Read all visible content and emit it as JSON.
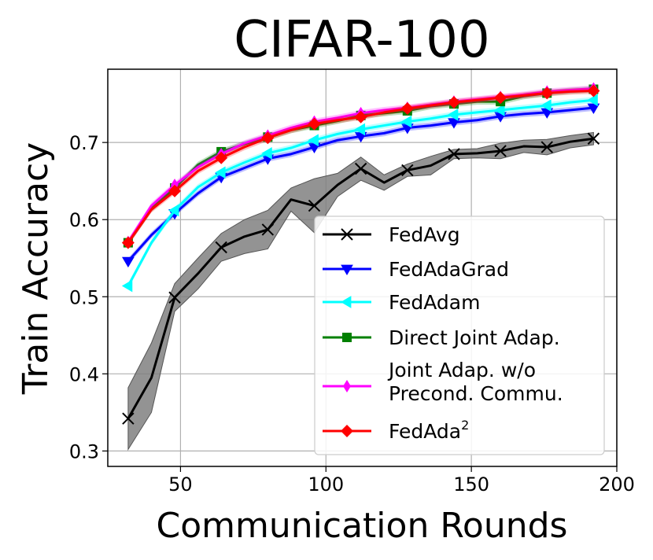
{
  "chart_data": {
    "type": "line",
    "title": "CIFAR-100",
    "xlabel": "Communication Rounds",
    "ylabel": "Train Accuracy",
    "xlim": [
      25,
      200
    ],
    "ylim": [
      0.28,
      0.795
    ],
    "xticks": [
      50,
      100,
      150,
      200
    ],
    "yticks": [
      0.3,
      0.4,
      0.5,
      0.6,
      0.7
    ],
    "xtick_labels": [
      "50",
      "100",
      "150",
      "200"
    ],
    "ytick_labels": [
      "0.3",
      "0.4",
      "0.5",
      "0.6",
      "0.7"
    ],
    "grid": true,
    "legend_position": "lower-right",
    "x": [
      32,
      40,
      48,
      56,
      64,
      72,
      80,
      88,
      96,
      104,
      112,
      120,
      128,
      136,
      144,
      152,
      160,
      168,
      176,
      184,
      192
    ],
    "series": [
      {
        "name": "FedAvg",
        "color": "#000000",
        "marker": "x",
        "marker_every": 2,
        "values": [
          0.342,
          0.395,
          0.499,
          0.53,
          0.564,
          0.578,
          0.587,
          0.626,
          0.618,
          0.645,
          0.666,
          0.648,
          0.664,
          0.67,
          0.685,
          0.686,
          0.689,
          0.695,
          0.694,
          0.701,
          0.705
        ],
        "band": [
          0.04,
          0.045,
          0.018,
          0.02,
          0.018,
          0.022,
          0.025,
          0.015,
          0.035,
          0.015,
          0.015,
          0.01,
          0.008,
          0.012,
          0.006,
          0.006,
          0.01,
          0.008,
          0.01,
          0.008,
          0.008
        ]
      },
      {
        "name": "FedAdaGrad",
        "color": "#0000ff",
        "marker": "triangle-down",
        "marker_every": 2,
        "values": [
          0.546,
          0.58,
          0.608,
          0.634,
          0.655,
          0.667,
          0.679,
          0.685,
          0.694,
          0.703,
          0.708,
          0.712,
          0.719,
          0.722,
          0.726,
          0.729,
          0.734,
          0.737,
          0.739,
          0.742,
          0.745
        ],
        "band": [
          0.004,
          0.004,
          0.004,
          0.004,
          0.004,
          0.004,
          0.004,
          0.004,
          0.004,
          0.004,
          0.004,
          0.004,
          0.004,
          0.004,
          0.004,
          0.004,
          0.004,
          0.004,
          0.004,
          0.004,
          0.004
        ]
      },
      {
        "name": "FedAdam",
        "color": "#00ffff",
        "marker": "triangle-left",
        "marker_every": 2,
        "values": [
          0.514,
          0.57,
          0.612,
          0.642,
          0.661,
          0.674,
          0.686,
          0.693,
          0.703,
          0.711,
          0.717,
          0.722,
          0.727,
          0.731,
          0.736,
          0.739,
          0.742,
          0.745,
          0.748,
          0.752,
          0.755
        ],
        "band": [
          0.004,
          0.004,
          0.004,
          0.004,
          0.004,
          0.004,
          0.004,
          0.004,
          0.004,
          0.004,
          0.004,
          0.004,
          0.004,
          0.004,
          0.004,
          0.004,
          0.004,
          0.004,
          0.004,
          0.004,
          0.004
        ]
      },
      {
        "name": "Direct Joint Adap.",
        "color": "#008000",
        "marker": "square",
        "marker_every": 2,
        "values": [
          0.57,
          0.614,
          0.641,
          0.671,
          0.688,
          0.698,
          0.707,
          0.716,
          0.722,
          0.728,
          0.735,
          0.738,
          0.741,
          0.747,
          0.75,
          0.753,
          0.753,
          0.76,
          0.764,
          0.767,
          0.769
        ],
        "band": [
          0.004,
          0.004,
          0.004,
          0.004,
          0.004,
          0.004,
          0.004,
          0.004,
          0.004,
          0.004,
          0.004,
          0.004,
          0.004,
          0.004,
          0.004,
          0.004,
          0.004,
          0.004,
          0.004,
          0.004,
          0.004
        ]
      },
      {
        "name": "Joint Adap. w/o Precond. Commu.",
        "legend_lines": [
          "Joint Adap. w/o",
          "Precond. Commu."
        ],
        "color": "#ff00ff",
        "marker": "thin-diamond",
        "marker_every": 2,
        "values": [
          0.571,
          0.618,
          0.645,
          0.668,
          0.685,
          0.699,
          0.709,
          0.719,
          0.727,
          0.732,
          0.738,
          0.742,
          0.745,
          0.749,
          0.753,
          0.756,
          0.759,
          0.762,
          0.766,
          0.768,
          0.77
        ],
        "band": [
          0.004,
          0.004,
          0.004,
          0.004,
          0.004,
          0.004,
          0.004,
          0.004,
          0.004,
          0.004,
          0.004,
          0.004,
          0.004,
          0.004,
          0.004,
          0.004,
          0.004,
          0.004,
          0.004,
          0.004,
          0.004
        ]
      },
      {
        "name": "FedAda²",
        "legend_base": "FedAda",
        "legend_sup": "2",
        "color": "#ff0000",
        "marker": "diamond",
        "marker_every": 2,
        "values": [
          0.57,
          0.613,
          0.637,
          0.663,
          0.68,
          0.694,
          0.706,
          0.716,
          0.724,
          0.729,
          0.733,
          0.739,
          0.744,
          0.748,
          0.752,
          0.755,
          0.758,
          0.761,
          0.764,
          0.766,
          0.767
        ],
        "band": [
          0.004,
          0.004,
          0.004,
          0.004,
          0.004,
          0.004,
          0.004,
          0.004,
          0.004,
          0.004,
          0.004,
          0.004,
          0.004,
          0.004,
          0.004,
          0.004,
          0.004,
          0.004,
          0.004,
          0.004,
          0.004
        ]
      }
    ]
  }
}
